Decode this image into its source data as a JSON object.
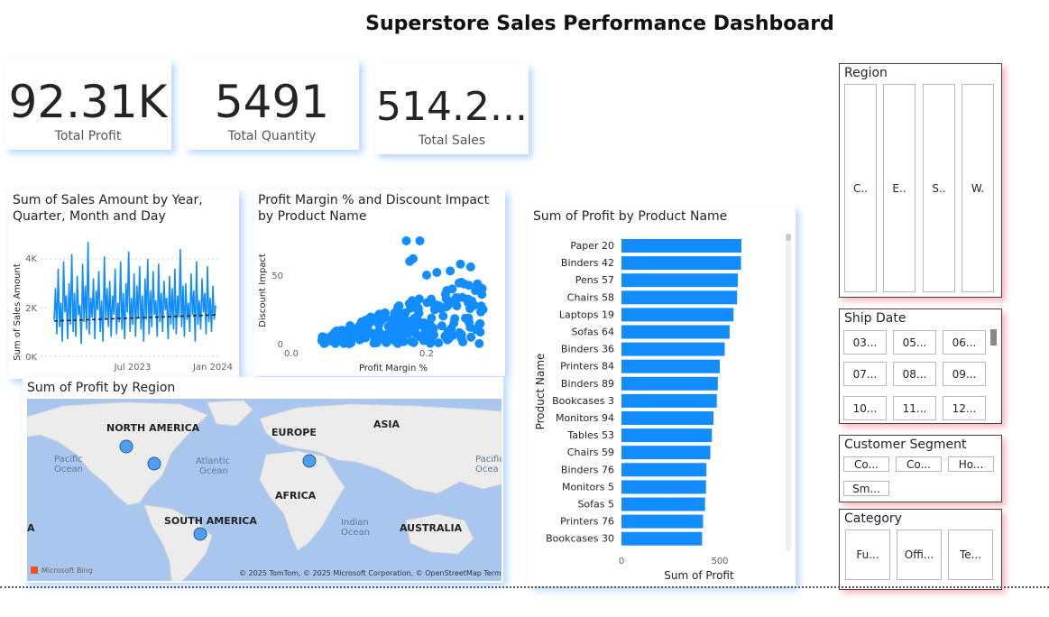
{
  "dashboard": {
    "title": "Superstore Sales Performance Dashboard"
  },
  "kpis": [
    {
      "value": "92.31K",
      "label": "Total Profit"
    },
    {
      "value": "5491",
      "label": "Total Quantity"
    },
    {
      "value": "514.2...",
      "label": "Total Sales"
    }
  ],
  "sales_trend": {
    "title": "Sum of Sales Amount by Year, Quarter, Month and Day",
    "ylabel": "Sum of Sales Amount",
    "xlabel": "...",
    "yticks": [
      "4K",
      "2K",
      "0K"
    ],
    "xticks": [
      "Jul 2023",
      "Jan 2024"
    ],
    "line_color": "#118DFF"
  },
  "scatter": {
    "title": "Profit Margin % and Discount Impact by Product Name",
    "xlabel": "Profit Margin %",
    "ylabel": "Discount Impact",
    "xticks": [
      "0.0",
      "0.2"
    ],
    "yticks": [
      "50",
      "0"
    ],
    "color": "#118DFF"
  },
  "map": {
    "title": "Sum of Profit by Region",
    "continents": [
      "NORTH AMERICA",
      "EUROPE",
      "ASIA",
      "AFRICA",
      "SOUTH AMERICA",
      "AUSTRALIA",
      "A"
    ],
    "oceans": [
      [
        "Pacific",
        "Ocean"
      ],
      [
        "Atlantic",
        "Ocean"
      ],
      [
        "Indian",
        "Ocean"
      ],
      [
        "Pacific",
        "Ocea"
      ]
    ],
    "attribution": "© 2025 TomTom, © 2025 Microsoft Corporation, © OpenStreetMap  Terms",
    "bing": "Microsoft Bing"
  },
  "bar_chart": {
    "title": "Sum of Profit by Product Name",
    "ylabel": "Product Name",
    "xlabel": "Sum of Profit",
    "xticks": [
      "0",
      "500"
    ],
    "color": "#118DFF"
  },
  "chart_data": [
    {
      "type": "bar",
      "orientation": "horizontal",
      "title": "Sum of Profit by Product Name",
      "xlabel": "Sum of Profit",
      "ylabel": "Product Name",
      "xlim": [
        0,
        620
      ],
      "categories": [
        "Paper 20",
        "Binders 42",
        "Pens 57",
        "Chairs 58",
        "Laptops 19",
        "Sofas 64",
        "Binders 36",
        "Printers 84",
        "Binders 89",
        "Bookcases 3",
        "Monitors 94",
        "Tables 53",
        "Chairs 59",
        "Binders 76",
        "Monitors 5",
        "Sofas 5",
        "Printers 76",
        "Bookcases 30"
      ],
      "values": [
        610,
        608,
        592,
        588,
        570,
        550,
        525,
        500,
        490,
        485,
        468,
        460,
        452,
        432,
        430,
        425,
        415,
        410
      ]
    },
    {
      "type": "line",
      "title": "Sum of Sales Amount by Year, Quarter, Month and Day",
      "ylabel": "Sum of Sales Amount",
      "ylim": [
        0,
        5000
      ],
      "x_range": [
        "Jan 2023",
        "Mar 2024"
      ],
      "series": [
        {
          "values": [
            1500,
            2800,
            900,
            3600,
            1200,
            2200,
            600,
            3900,
            1800,
            2500,
            700,
            3000,
            1300,
            4200,
            1000,
            2600,
            800,
            3300,
            1700,
            2100,
            500,
            3800,
            1400,
            2900,
            1100,
            4700,
            900,
            2400,
            1600,
            3200,
            700,
            2700,
            1900,
            3500,
            1000,
            2300,
            600,
            4100,
            1500,
            2800,
            1200,
            3100,
            800,
            2500,
            1700,
            3600,
            900,
            2200,
            1400,
            3900,
            1100,
            2600,
            700,
            3000,
            1800,
            4300,
            1000,
            2400,
            1300,
            3400,
            800,
            2900,
            1600,
            3700,
            1100,
            2500,
            600,
            3200,
            1500,
            4000,
            900,
            2700,
            1200,
            3500,
            1700,
            2300,
            800,
            3800,
            1400,
            2600,
            1000,
            3100,
            1900,
            2400,
            700,
            3300,
            1300,
            2800,
            1100,
            3600,
            900,
            2500,
            1600,
            4400,
            1200,
            2900,
            800,
            3000,
            1500,
            2200,
            1000,
            3400,
            1700,
            2700,
            600,
            3900,
            1300,
            2300,
            1100,
            3200,
            1800,
            2600,
            900,
            3700,
            1400,
            2400,
            1000,
            2900,
            1500,
            2100
          ]
        }
      ],
      "trendline": [
        1450,
        1700
      ]
    },
    {
      "type": "scatter",
      "title": "Profit Margin % and Discount Impact by Product Name",
      "xlabel": "Profit Margin %",
      "ylabel": "Discount Impact",
      "xlim": [
        -0.01,
        0.3
      ],
      "ylim": [
        0,
        85
      ]
    }
  ],
  "slicers": {
    "region": {
      "title": "Region",
      "items": [
        "C..",
        "E..",
        "S..",
        "W."
      ]
    },
    "ship_date": {
      "title": "Ship Date",
      "items": [
        "03...",
        "05...",
        "06...",
        "07...",
        "08...",
        "09...",
        "10...",
        "11...",
        "12..."
      ]
    },
    "segment": {
      "title": "Customer Segment",
      "items": [
        "Co...",
        "Co...",
        "Ho...",
        "Sm..."
      ]
    },
    "category": {
      "title": "Category",
      "items": [
        "Fu...",
        "Offi...",
        "Te..."
      ]
    }
  }
}
